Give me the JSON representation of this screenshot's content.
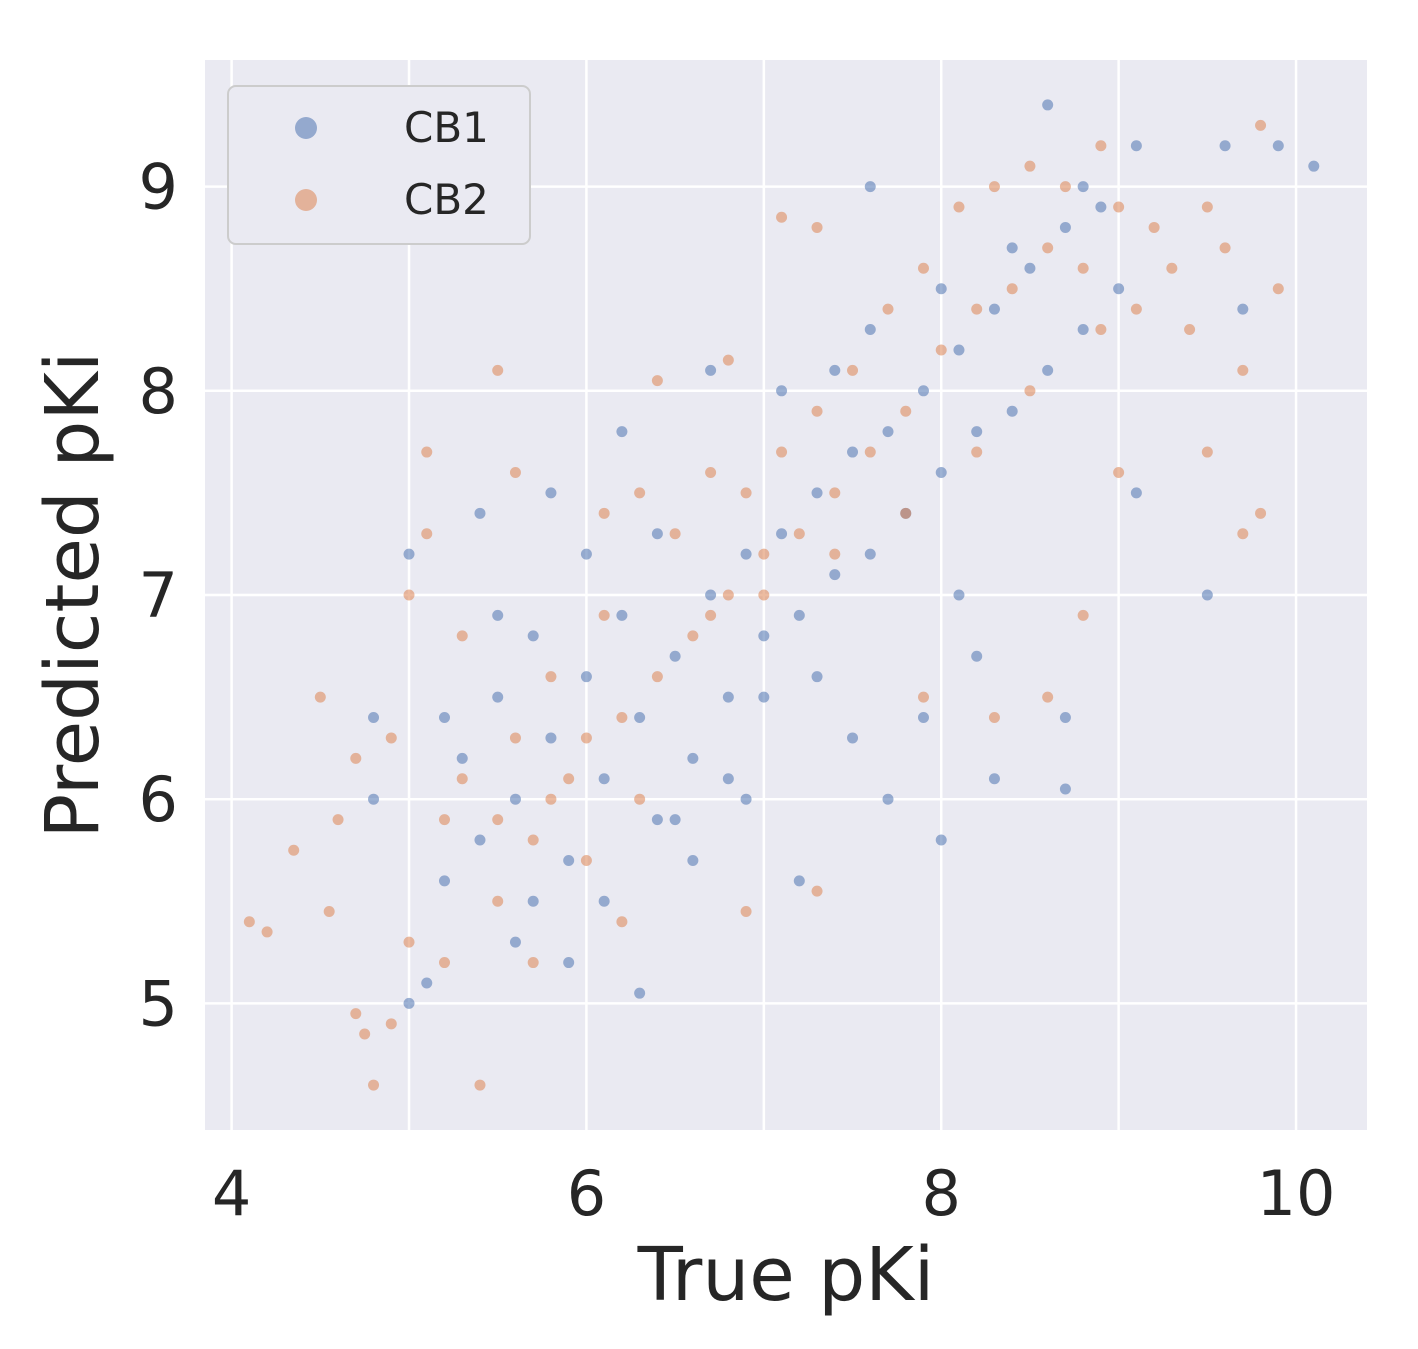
{
  "chart_data": {
    "type": "scatter",
    "title": "",
    "xlabel": "True pKi",
    "ylabel": "Predicted pKi",
    "xlim": [
      3.85,
      10.4
    ],
    "ylim": [
      4.38,
      9.62
    ],
    "xticks": [
      4,
      6,
      8,
      10
    ],
    "yticks": [
      5,
      6,
      7,
      8,
      9
    ],
    "grid": true,
    "legend_position": "top-left",
    "series": [
      {
        "name": "CB1",
        "color": "#4c72b0",
        "points": [
          [
            5.1,
            5.1
          ],
          [
            5.2,
            5.6
          ],
          [
            5.3,
            6.2
          ],
          [
            5.4,
            5.8
          ],
          [
            5.5,
            6.5
          ],
          [
            5.6,
            6.0
          ],
          [
            5.7,
            6.8
          ],
          [
            5.8,
            6.3
          ],
          [
            5.9,
            5.7
          ],
          [
            6.0,
            6.6
          ],
          [
            6.1,
            6.1
          ],
          [
            6.2,
            6.9
          ],
          [
            6.3,
            6.4
          ],
          [
            6.4,
            5.9
          ],
          [
            6.5,
            6.7
          ],
          [
            6.6,
            6.2
          ],
          [
            6.7,
            7.0
          ],
          [
            6.8,
            6.5
          ],
          [
            6.9,
            7.2
          ],
          [
            7.0,
            6.8
          ],
          [
            7.1,
            7.3
          ],
          [
            7.2,
            6.9
          ],
          [
            7.3,
            7.5
          ],
          [
            7.4,
            7.1
          ],
          [
            7.5,
            7.7
          ],
          [
            7.6,
            7.2
          ],
          [
            7.7,
            7.8
          ],
          [
            7.8,
            7.4
          ],
          [
            7.9,
            8.0
          ],
          [
            8.0,
            7.6
          ],
          [
            8.1,
            8.2
          ],
          [
            8.2,
            7.8
          ],
          [
            8.3,
            8.4
          ],
          [
            8.4,
            7.9
          ],
          [
            8.5,
            8.6
          ],
          [
            8.6,
            8.1
          ],
          [
            8.7,
            8.8
          ],
          [
            8.8,
            8.3
          ],
          [
            8.9,
            8.9
          ],
          [
            9.0,
            8.5
          ],
          [
            5.4,
            7.4
          ],
          [
            5.8,
            7.5
          ],
          [
            6.2,
            7.8
          ],
          [
            6.7,
            8.1
          ],
          [
            7.6,
            9.0
          ],
          [
            8.6,
            9.4
          ],
          [
            9.1,
            9.2
          ],
          [
            9.6,
            9.2
          ],
          [
            9.9,
            9.2
          ],
          [
            10.1,
            9.1
          ],
          [
            9.7,
            8.4
          ],
          [
            9.5,
            7.0
          ],
          [
            8.7,
            6.4
          ],
          [
            8.7,
            6.05
          ],
          [
            8.0,
            5.8
          ],
          [
            8.3,
            6.1
          ],
          [
            6.3,
            5.05
          ],
          [
            5.9,
            5.2
          ],
          [
            5.0,
            5.0
          ],
          [
            4.8,
            6.0
          ],
          [
            4.8,
            6.4
          ],
          [
            5.0,
            7.2
          ],
          [
            5.2,
            6.4
          ],
          [
            5.6,
            5.3
          ],
          [
            6.6,
            5.7
          ],
          [
            7.2,
            5.6
          ],
          [
            7.7,
            6.0
          ],
          [
            7.9,
            6.4
          ],
          [
            8.2,
            6.7
          ],
          [
            8.1,
            7.0
          ],
          [
            9.1,
            7.5
          ],
          [
            6.0,
            7.2
          ],
          [
            6.4,
            7.3
          ],
          [
            6.9,
            6.0
          ],
          [
            7.5,
            6.3
          ],
          [
            5.5,
            6.9
          ],
          [
            5.7,
            5.5
          ],
          [
            6.1,
            5.5
          ],
          [
            6.5,
            5.9
          ],
          [
            6.8,
            6.1
          ],
          [
            7.0,
            6.5
          ],
          [
            7.3,
            6.6
          ],
          [
            7.1,
            8.0
          ],
          [
            7.4,
            8.1
          ],
          [
            7.6,
            8.3
          ],
          [
            8.0,
            8.5
          ],
          [
            8.4,
            8.7
          ],
          [
            8.8,
            9.0
          ]
        ]
      },
      {
        "name": "CB2",
        "color": "#dd8452",
        "points": [
          [
            4.1,
            5.4
          ],
          [
            4.2,
            5.35
          ],
          [
            4.35,
            5.75
          ],
          [
            4.55,
            5.45
          ],
          [
            4.7,
            4.95
          ],
          [
            4.75,
            4.85
          ],
          [
            4.8,
            4.6
          ],
          [
            4.9,
            4.9
          ],
          [
            5.0,
            5.3
          ],
          [
            5.0,
            7.0
          ],
          [
            5.1,
            7.3
          ],
          [
            5.2,
            5.9
          ],
          [
            5.3,
            6.1
          ],
          [
            5.4,
            4.6
          ],
          [
            5.5,
            5.5
          ],
          [
            5.6,
            6.3
          ],
          [
            5.7,
            5.8
          ],
          [
            5.8,
            6.6
          ],
          [
            5.9,
            6.1
          ],
          [
            6.0,
            5.7
          ],
          [
            6.1,
            6.9
          ],
          [
            6.2,
            6.4
          ],
          [
            6.3,
            6.0
          ],
          [
            6.4,
            8.05
          ],
          [
            6.5,
            7.3
          ],
          [
            6.6,
            6.8
          ],
          [
            6.7,
            7.6
          ],
          [
            6.8,
            7.0
          ],
          [
            6.9,
            7.5
          ],
          [
            7.0,
            7.2
          ],
          [
            7.1,
            7.7
          ],
          [
            7.2,
            7.3
          ],
          [
            7.3,
            7.9
          ],
          [
            7.4,
            7.5
          ],
          [
            7.5,
            8.1
          ],
          [
            7.6,
            7.7
          ],
          [
            7.7,
            8.4
          ],
          [
            7.8,
            7.9
          ],
          [
            7.9,
            8.6
          ],
          [
            8.0,
            8.2
          ],
          [
            8.1,
            8.9
          ],
          [
            8.2,
            8.4
          ],
          [
            8.3,
            9.0
          ],
          [
            8.4,
            8.5
          ],
          [
            8.5,
            9.1
          ],
          [
            8.6,
            8.7
          ],
          [
            8.7,
            9.0
          ],
          [
            8.8,
            8.6
          ],
          [
            8.9,
            9.2
          ],
          [
            9.0,
            8.9
          ],
          [
            9.1,
            8.4
          ],
          [
            9.2,
            8.8
          ],
          [
            9.4,
            8.3
          ],
          [
            9.5,
            8.9
          ],
          [
            9.6,
            8.7
          ],
          [
            9.7,
            8.1
          ],
          [
            9.8,
            9.3
          ],
          [
            9.9,
            8.5
          ],
          [
            9.8,
            7.4
          ],
          [
            9.7,
            7.3
          ],
          [
            9.5,
            7.7
          ],
          [
            9.0,
            7.6
          ],
          [
            8.8,
            6.9
          ],
          [
            8.6,
            6.5
          ],
          [
            8.3,
            6.4
          ],
          [
            7.9,
            6.5
          ],
          [
            7.3,
            5.55
          ],
          [
            6.9,
            5.45
          ],
          [
            5.5,
            8.1
          ],
          [
            5.1,
            7.7
          ],
          [
            4.5,
            6.5
          ],
          [
            4.7,
            6.2
          ],
          [
            4.6,
            5.9
          ],
          [
            4.9,
            6.3
          ],
          [
            5.3,
            6.8
          ],
          [
            5.6,
            7.6
          ],
          [
            6.1,
            7.4
          ],
          [
            6.3,
            7.5
          ],
          [
            6.8,
            8.15
          ],
          [
            7.1,
            8.85
          ],
          [
            7.3,
            8.8
          ],
          [
            5.2,
            5.2
          ],
          [
            5.5,
            5.9
          ],
          [
            5.8,
            6.0
          ],
          [
            6.0,
            6.3
          ],
          [
            6.4,
            6.6
          ],
          [
            6.7,
            6.9
          ],
          [
            7.0,
            7.0
          ],
          [
            7.4,
            7.2
          ],
          [
            7.8,
            7.4
          ],
          [
            8.2,
            7.7
          ],
          [
            8.5,
            8.0
          ],
          [
            8.9,
            8.3
          ],
          [
            9.3,
            8.6
          ],
          [
            6.2,
            5.4
          ],
          [
            5.7,
            5.2
          ]
        ]
      }
    ]
  }
}
